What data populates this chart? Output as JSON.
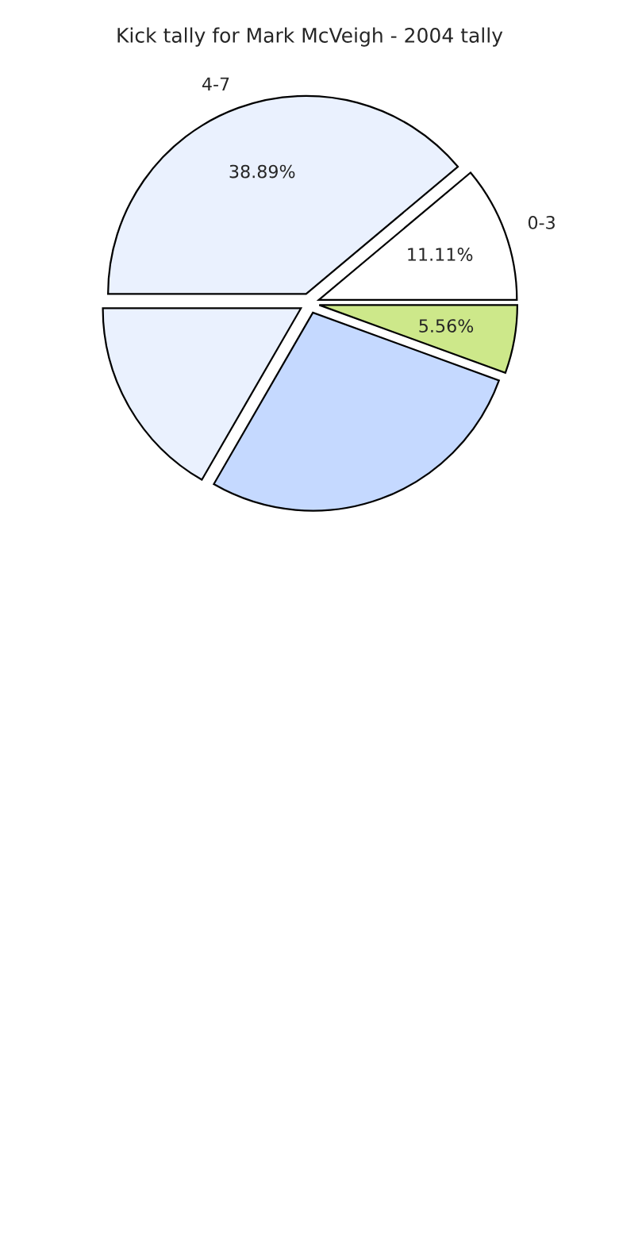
{
  "chart_data": {
    "type": "pie",
    "title": "Kick tally for Mark McVeigh - 2004 tally",
    "categories": [
      "0-3",
      "4-7",
      null,
      null,
      null
    ],
    "values": [
      11.11,
      38.89,
      16.67,
      27.78,
      5.56
    ],
    "value_labels": [
      "11.11%",
      "38.89%",
      null,
      null,
      "5.56%"
    ],
    "colors": [
      "#ffffff",
      "#eaf1fe",
      "#eaf1fe",
      "#c5d9ff",
      "#cde88a"
    ]
  }
}
